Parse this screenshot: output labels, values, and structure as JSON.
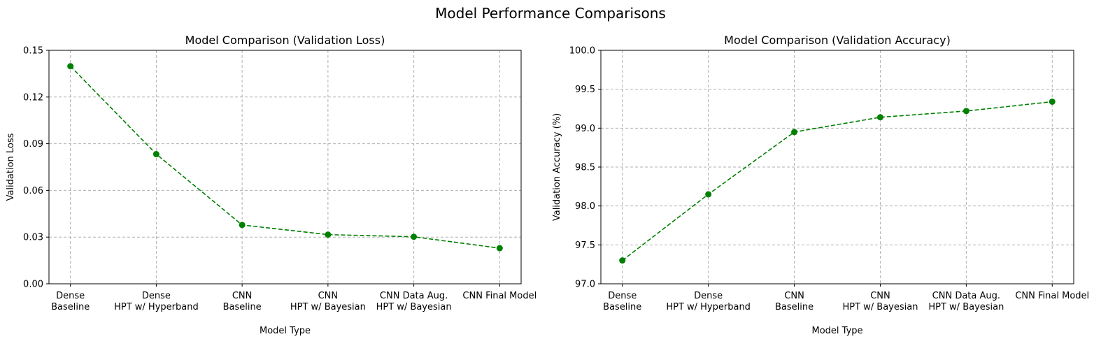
{
  "figure": {
    "suptitle": "Model Performance Comparisons"
  },
  "chart_data": [
    {
      "type": "line",
      "title": "Model Comparison (Validation Loss)",
      "xlabel": "Model Type",
      "ylabel": "Validation Loss",
      "categories": [
        [
          "Dense",
          "Baseline"
        ],
        [
          "Dense",
          "HPT w/ Hyperband"
        ],
        [
          "CNN",
          "Baseline"
        ],
        [
          "CNN",
          "HPT w/ Bayesian"
        ],
        [
          "CNN Data Aug.",
          "HPT w/ Bayesian"
        ],
        [
          "CNN Final Model"
        ]
      ],
      "series": [
        {
          "values": [
            0.1398,
            0.0833,
            0.0378,
            0.0316,
            0.0302,
            0.0229
          ],
          "color": "#008000",
          "linestyle": "dashed",
          "marker": "circle"
        }
      ],
      "ylim": [
        0.0,
        0.15
      ],
      "yticks": [
        0.0,
        0.03,
        0.06,
        0.09,
        0.12,
        0.15
      ],
      "ytick_labels": [
        "0.00",
        "0.03",
        "0.06",
        "0.09",
        "0.12",
        "0.15"
      ],
      "grid": true
    },
    {
      "type": "line",
      "title": "Model Comparison (Validation Accuracy)",
      "xlabel": "Model Type",
      "ylabel": "Validation Accuracy (%)",
      "categories": [
        [
          "Dense",
          "Baseline"
        ],
        [
          "Dense",
          "HPT w/ Hyperband"
        ],
        [
          "CNN",
          "Baseline"
        ],
        [
          "CNN",
          "HPT w/ Bayesian"
        ],
        [
          "CNN Data Aug.",
          "HPT w/ Bayesian"
        ],
        [
          "CNN Final Model"
        ]
      ],
      "series": [
        {
          "values": [
            97.3,
            98.15,
            98.95,
            99.14,
            99.22,
            99.34
          ],
          "color": "#008000",
          "linestyle": "dashed",
          "marker": "circle"
        }
      ],
      "ylim": [
        97.0,
        100.0
      ],
      "yticks": [
        97.0,
        97.5,
        98.0,
        98.5,
        99.0,
        99.5,
        100.0
      ],
      "ytick_labels": [
        "97.0",
        "97.5",
        "98.0",
        "98.5",
        "99.0",
        "99.5",
        "100.0"
      ],
      "grid": true
    }
  ]
}
